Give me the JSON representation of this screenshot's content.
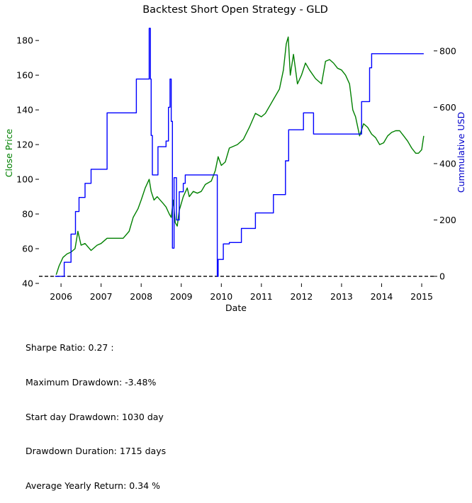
{
  "chart_data": {
    "type": "line",
    "title": "Backtest Short Open Strategy - GLD",
    "xlabel": "Date",
    "ylabel_left": "Close Price",
    "ylabel_right": "Cummulative USD",
    "xlim": [
      2005.45,
      2015.3
    ],
    "ylim_left": [
      40,
      187
    ],
    "ylim_right": [
      -25,
      880
    ],
    "x_ticks": [
      2006,
      2007,
      2008,
      2009,
      2010,
      2011,
      2012,
      2013,
      2014,
      2015
    ],
    "x_tick_labels": [
      "2006",
      "2007",
      "2008",
      "2009",
      "2010",
      "2011",
      "2012",
      "2013",
      "2014",
      "2015"
    ],
    "y_left_ticks": [
      40,
      60,
      80,
      100,
      120,
      140,
      160,
      180
    ],
    "y_left_tick_labels": [
      "40",
      "60",
      "80",
      "100",
      "120",
      "140",
      "160",
      "180"
    ],
    "y_right_ticks": [
      0,
      200,
      400,
      600,
      800
    ],
    "y_right_tick_labels": [
      "0",
      "200",
      "400",
      "600",
      "800"
    ],
    "grid": false,
    "colors": {
      "price": "#008000",
      "pnl": "#0000ff",
      "baseline": "#000000",
      "left_label": "#008000",
      "right_label": "#0000cc"
    },
    "baseline_right": 0,
    "series": [
      {
        "axis": "left",
        "x": [
          2005.88,
          2005.95,
          2006.05,
          2006.15,
          2006.25,
          2006.35,
          2006.42,
          2006.5,
          2006.6,
          2006.75,
          2006.9,
          2007.0,
          2007.15,
          2007.35,
          2007.55,
          2007.7,
          2007.8,
          2007.92,
          2008.0,
          2008.1,
          2008.2,
          2008.25,
          2008.32,
          2008.4,
          2008.55,
          2008.62,
          2008.7,
          2008.75,
          2008.8,
          2008.85,
          2008.9,
          2008.95,
          2009.05,
          2009.15,
          2009.2,
          2009.3,
          2009.4,
          2009.5,
          2009.6,
          2009.75,
          2009.85,
          2009.92,
          2010.0,
          2010.1,
          2010.2,
          2010.4,
          2010.55,
          2010.7,
          2010.85,
          2011.0,
          2011.1,
          2011.3,
          2011.45,
          2011.55,
          2011.62,
          2011.67,
          2011.72,
          2011.8,
          2011.9,
          2012.0,
          2012.1,
          2012.2,
          2012.35,
          2012.5,
          2012.6,
          2012.7,
          2012.8,
          2012.9,
          2013.0,
          2013.1,
          2013.2,
          2013.28,
          2013.35,
          2013.45,
          2013.55,
          2013.65,
          2013.75,
          2013.85,
          2013.95,
          2014.05,
          2014.15,
          2014.25,
          2014.35,
          2014.45,
          2014.55,
          2014.65,
          2014.75,
          2014.85,
          2014.92,
          2015.0,
          2015.05
        ],
        "values": [
          45,
          50,
          55,
          57,
          58,
          60,
          70,
          62,
          63,
          59,
          62,
          63,
          66,
          66,
          66,
          70,
          78,
          83,
          88,
          95,
          100,
          93,
          88,
          90,
          86,
          84,
          80,
          78,
          88,
          75,
          73,
          82,
          90,
          95,
          90,
          93,
          92,
          93,
          97,
          99,
          105,
          113,
          108,
          110,
          118,
          120,
          123,
          130,
          138,
          136,
          138,
          146,
          152,
          163,
          178,
          182,
          160,
          172,
          155,
          160,
          167,
          163,
          158,
          155,
          168,
          169,
          167,
          164,
          163,
          160,
          155,
          140,
          136,
          125,
          132,
          130,
          126,
          124,
          120,
          121,
          125,
          127,
          128,
          128,
          125,
          122,
          118,
          115,
          115,
          117,
          125
        ]
      },
      {
        "axis": "right",
        "step": true,
        "x": [
          2005.85,
          2006.08,
          2006.25,
          2006.36,
          2006.45,
          2006.6,
          2006.75,
          2007.15,
          2007.88,
          2008.2,
          2008.23,
          2008.25,
          2008.28,
          2008.42,
          2008.62,
          2008.68,
          2008.72,
          2008.75,
          2008.78,
          2008.82,
          2008.88,
          2008.95,
          2009.05,
          2009.1,
          2009.9,
          2009.92,
          2010.05,
          2010.2,
          2010.5,
          2010.85,
          2011.3,
          2011.6,
          2011.68,
          2011.85,
          2012.05,
          2012.3,
          2013.28,
          2013.5,
          2013.7,
          2013.75,
          2014.5,
          2015.05
        ],
        "values": [
          0,
          50,
          150,
          230,
          280,
          330,
          380,
          580,
          700,
          880,
          700,
          500,
          360,
          460,
          480,
          600,
          700,
          550,
          100,
          350,
          200,
          300,
          330,
          360,
          0,
          60,
          115,
          120,
          170,
          225,
          290,
          410,
          520,
          520,
          580,
          505,
          505,
          620,
          740,
          790,
          790,
          790
        ]
      }
    ]
  },
  "stats": [
    "Sharpe Ratio: 0.27 :",
    "Maximum Drawdown: -3.48%",
    "Start day Drawdown: 1030 day",
    "Drawdown Duration: 1715 days",
    "Average Yearly Return: 0.34 %"
  ]
}
